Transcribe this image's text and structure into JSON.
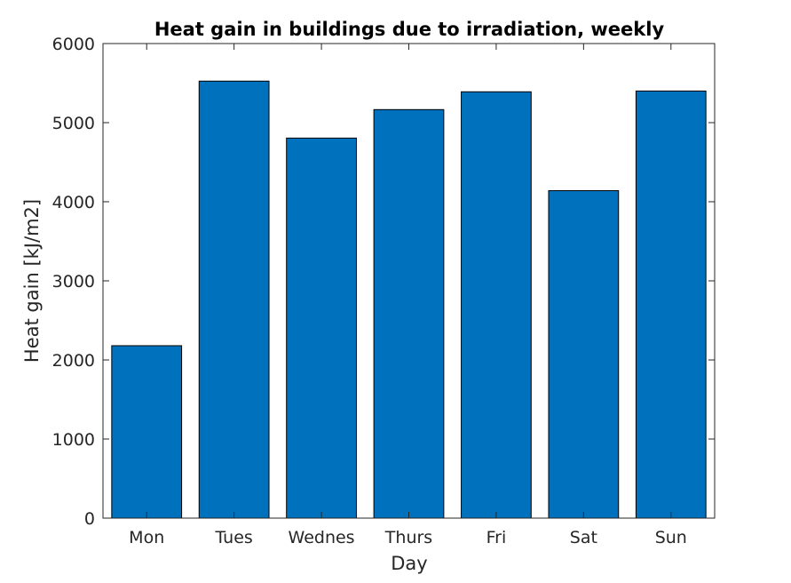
{
  "chart_data": {
    "type": "bar",
    "title": "Heat gain in buildings due to irradiation, weekly",
    "xlabel": "Day",
    "ylabel": "Heat gain [kJ/m2]",
    "categories": [
      "Mon",
      "Tues",
      "Wednes",
      "Thurs",
      "Fri",
      "Sat",
      "Sun"
    ],
    "values": [
      2180,
      5525,
      4805,
      5165,
      5390,
      4140,
      5400
    ],
    "ylim": [
      0,
      6000
    ],
    "yticks": [
      0,
      1000,
      2000,
      3000,
      4000,
      5000,
      6000
    ],
    "grid": false,
    "legend": "none",
    "colors": {
      "bar_fill": "#0072BD",
      "bar_edge": "#000000",
      "axis": "#262626"
    }
  }
}
